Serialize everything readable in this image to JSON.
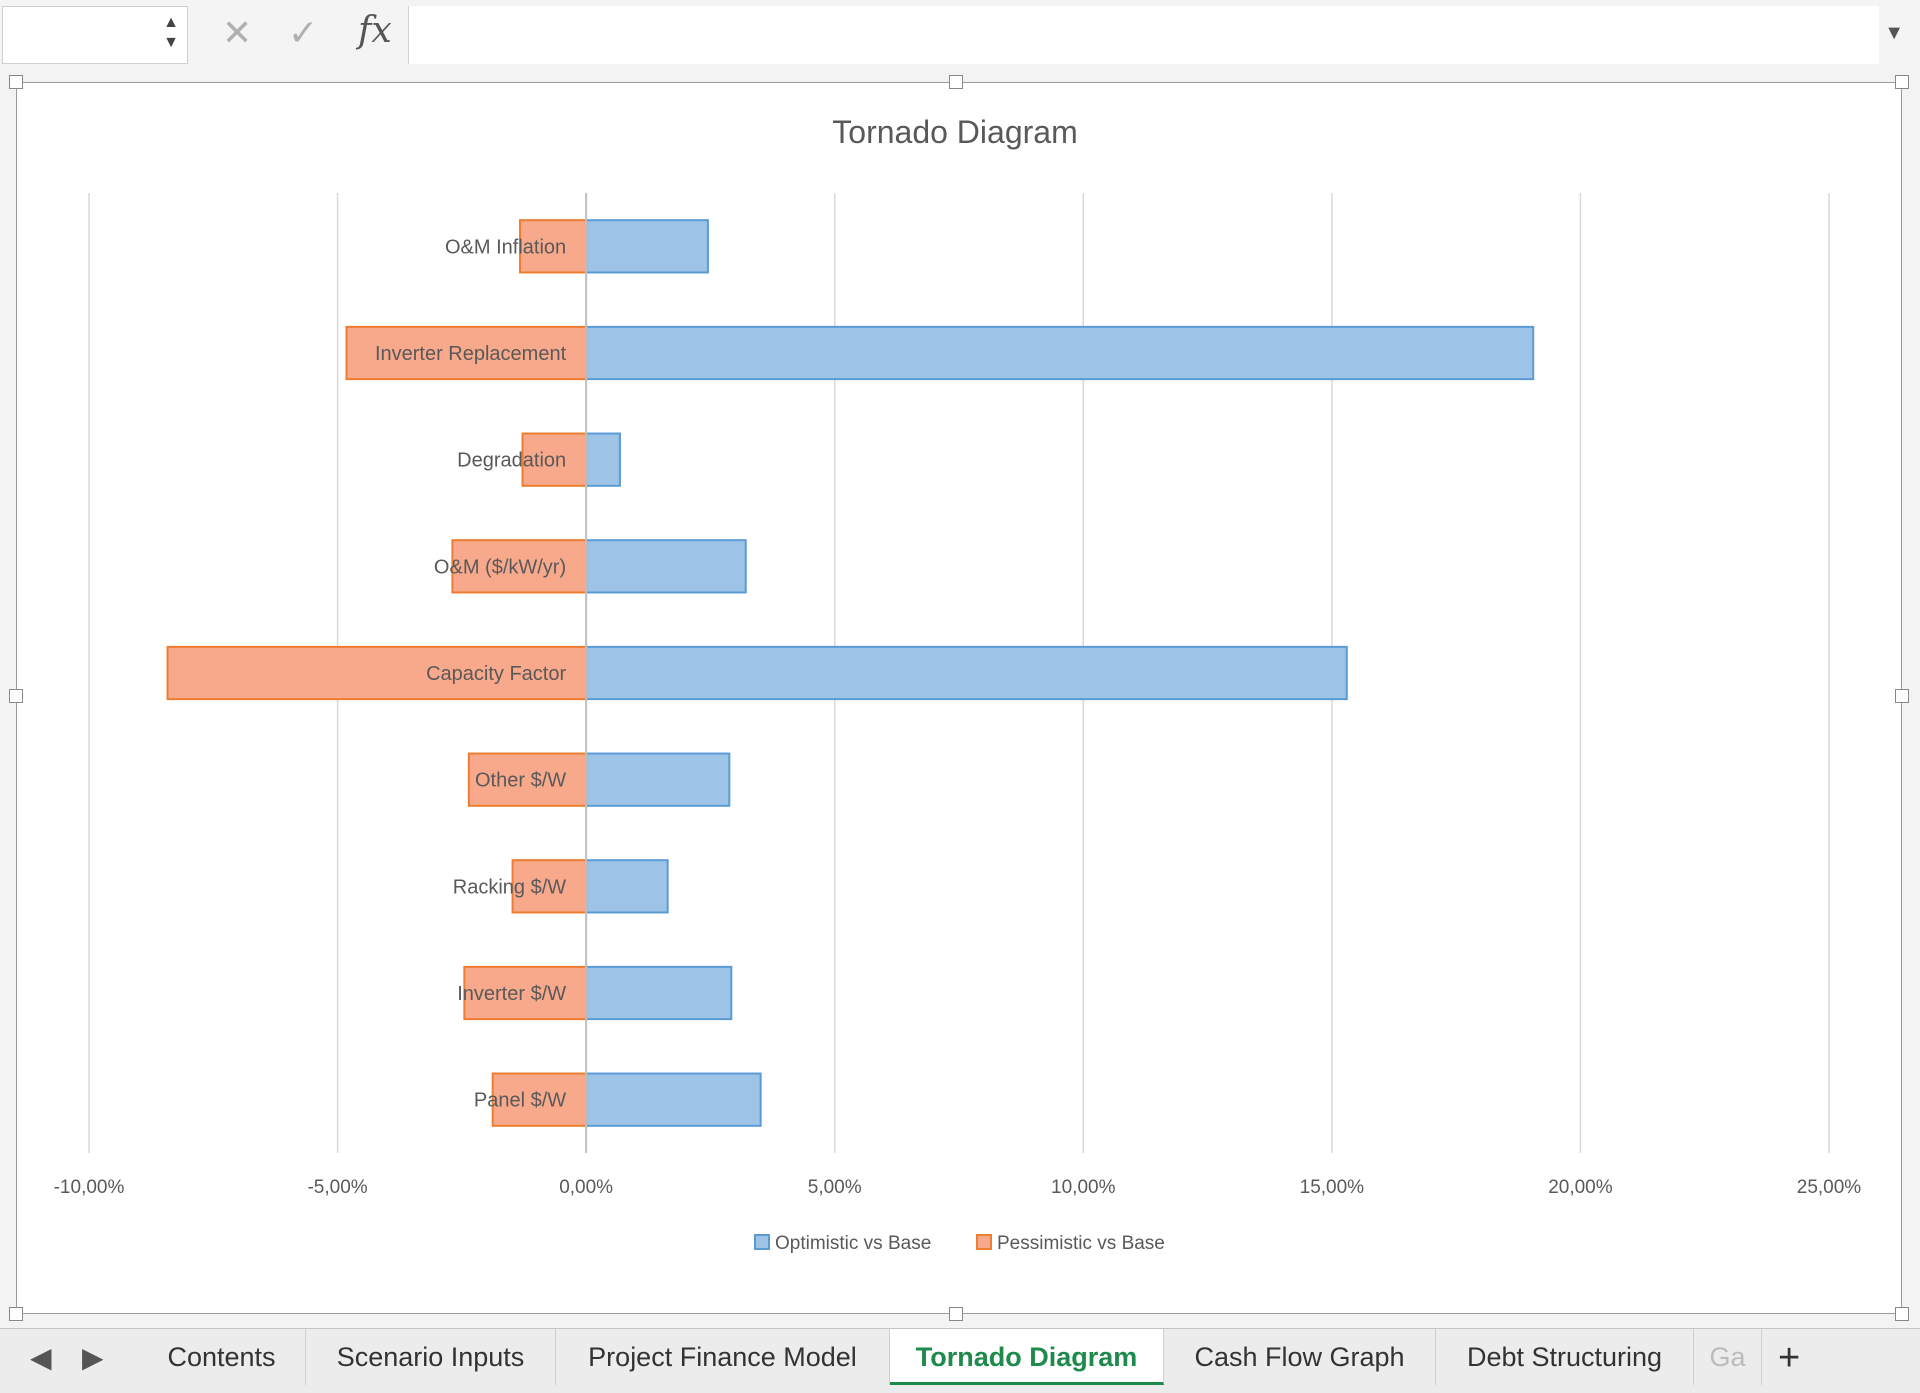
{
  "formula_bar": {
    "name_box_value": "",
    "formula_value": "",
    "cancel_icon": "close-icon",
    "enter_icon": "check-icon",
    "fx_label": "fx"
  },
  "chart_data": {
    "type": "bar",
    "orientation": "horizontal",
    "title": "Tornado Diagram",
    "categories": [
      "O&M Inflation",
      "Inverter Replacement",
      "Degradation",
      "O&M ($/kW/yr)",
      "Capacity Factor",
      "Other $/W",
      "Racking $/W",
      "Inverter $/W",
      "Panel $/W"
    ],
    "series": [
      {
        "name": "Optimistic vs Base",
        "color": "#9dc3e6",
        "stroke": "#5b9bd5",
        "values": [
          0.0245,
          0.1905,
          0.0068,
          0.0321,
          0.153,
          0.0288,
          0.0164,
          0.0292,
          0.0351
        ]
      },
      {
        "name": "Pessimistic vs Base",
        "color": "#f8a98b",
        "stroke": "#ed7d31",
        "values": [
          -0.0133,
          -0.0482,
          -0.0128,
          -0.0269,
          -0.0842,
          -0.0236,
          -0.0148,
          -0.0245,
          -0.0188
        ]
      }
    ],
    "xlim": [
      -0.1,
      0.25
    ],
    "xticks": [
      -0.1,
      -0.05,
      0,
      0.05,
      0.1,
      0.15,
      0.2,
      0.25
    ],
    "xtick_labels": [
      "-10,00%",
      "-5,00%",
      "0,00%",
      "5,00%",
      "10,00%",
      "15,00%",
      "20,00%",
      "25,00%"
    ],
    "xlabel": "",
    "ylabel": "",
    "grid": true,
    "legend_position": "bottom"
  },
  "sheet_tabs": {
    "tabs": [
      "Contents",
      "Scenario Inputs",
      "Project Finance Model",
      "Tornado Diagram",
      "Cash Flow Graph",
      "Debt Structuring",
      "Ga"
    ],
    "active": "Tornado Diagram",
    "add_label": "+"
  }
}
